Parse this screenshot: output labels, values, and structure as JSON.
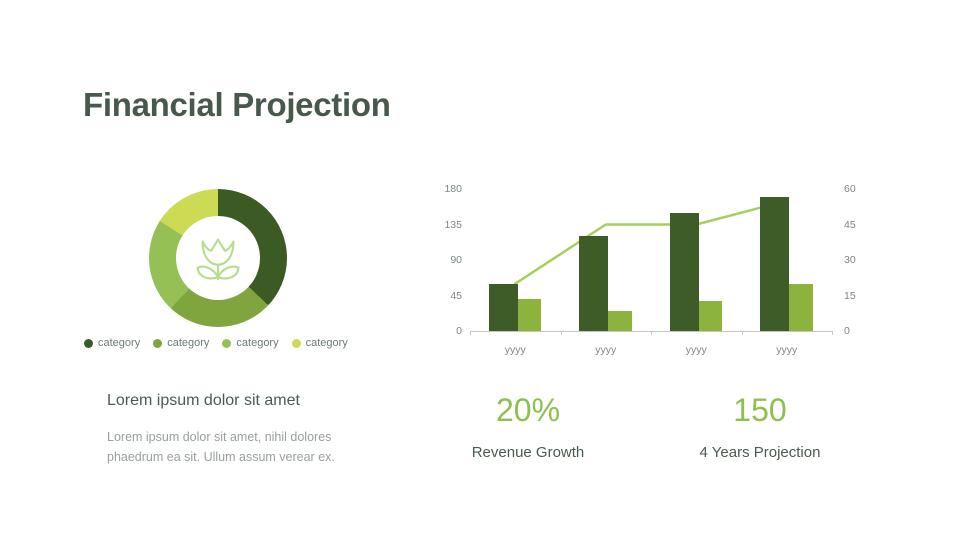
{
  "slide": {
    "title": "Financial Projection"
  },
  "theme": {
    "title_color": "#48594c",
    "text_dark": "#4a5b4f",
    "text_gray": "#98a19b",
    "axis_gray": "#7b867f",
    "legend_gray": "#6e7a72",
    "stat_green": "#8dc04f",
    "flower_green": "#b9dd8f",
    "axis_line": "#c3c8c4"
  },
  "left_panel": {
    "heading": "Lorem ipsum dolor sit amet",
    "body_lines": [
      "Lorem ipsum dolor sit amet, nihil dolores",
      "phaedrum ea sit. Ullum assum verear ex."
    ]
  },
  "stats": [
    {
      "value": "20%",
      "label": "Revenue Growth"
    },
    {
      "value": "150",
      "label": "4 Years Projection"
    }
  ],
  "chart_data": [
    {
      "type": "pie",
      "subtype": "donut",
      "labels": [
        "category",
        "category",
        "category",
        "category"
      ],
      "values_percent": [
        37,
        25,
        22,
        16
      ],
      "colors": [
        "#3c5a24",
        "#80a53e",
        "#95c055",
        "#ccda54"
      ],
      "center_icon": "flower",
      "legend_position": "bottom"
    },
    {
      "type": "bar",
      "title": "",
      "categories": [
        "yyyy",
        "yyyy",
        "yyyy",
        "yyyy"
      ],
      "series": [
        {
          "name": "bar-series-dark",
          "type": "bar",
          "axis": "left",
          "color": "#3e5c27",
          "values": [
            60,
            120,
            150,
            170
          ]
        },
        {
          "name": "bar-series-light",
          "type": "bar",
          "axis": "left",
          "color": "#8db33f",
          "values": [
            40,
            25,
            38,
            60
          ]
        },
        {
          "name": "trend-line",
          "type": "line",
          "axis": "right",
          "color": "#a6cf5d",
          "values": [
            20,
            45,
            45,
            55
          ]
        }
      ],
      "left_axis": {
        "ticks": [
          0,
          45,
          90,
          135,
          180
        ],
        "max": 180
      },
      "right_axis": {
        "ticks": [
          0,
          15,
          30,
          45,
          60
        ],
        "max": 60
      },
      "grid": false,
      "legend_position": "none"
    }
  ]
}
